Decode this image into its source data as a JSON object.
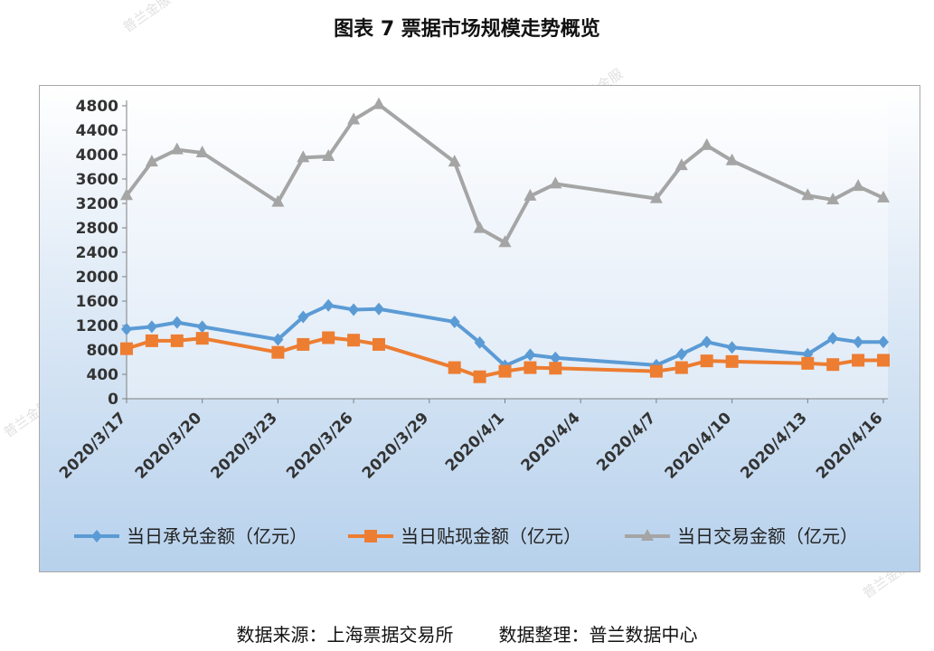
{
  "title": "图表 7  票据市场规模走势概览",
  "source": {
    "left": "数据来源：上海票据交易所",
    "right": "数据整理：普兰数据中心"
  },
  "watermark": "普兰金服",
  "chart_data": {
    "type": "line",
    "ylim": [
      0,
      4800
    ],
    "ytick_step": 400,
    "x_tick_labels": [
      "2020/3/17",
      "2020/3/20",
      "2020/3/23",
      "2020/3/26",
      "2020/3/29",
      "2020/4/1",
      "2020/4/4",
      "2020/4/7",
      "2020/4/10",
      "2020/4/13",
      "2020/4/16"
    ],
    "x": [
      "2020/3/17",
      "2020/3/18",
      "2020/3/19",
      "2020/3/20",
      "2020/3/23",
      "2020/3/24",
      "2020/3/25",
      "2020/3/26",
      "2020/3/27",
      "2020/3/30",
      "2020/3/31",
      "2020/4/1",
      "2020/4/2",
      "2020/4/3",
      "2020/4/7",
      "2020/4/8",
      "2020/4/9",
      "2020/4/10",
      "2020/4/13",
      "2020/4/14",
      "2020/4/15",
      "2020/4/16"
    ],
    "legend_position": "bottom",
    "grid": false,
    "series": [
      {
        "name": "当日承兑金额（亿元）",
        "color": "#5b9bd5",
        "marker": "diamond",
        "values": [
          1140,
          1180,
          1250,
          1180,
          970,
          1340,
          1530,
          1460,
          1470,
          1260,
          920,
          540,
          720,
          670,
          550,
          730,
          930,
          840,
          730,
          990,
          930,
          930
        ]
      },
      {
        "name": "当日贴现金额（亿元）",
        "color": "#ed7d31",
        "marker": "square",
        "values": [
          820,
          950,
          950,
          990,
          760,
          890,
          1000,
          960,
          890,
          510,
          360,
          450,
          510,
          500,
          450,
          510,
          620,
          610,
          580,
          560,
          630,
          630
        ]
      },
      {
        "name": "当日交易金额（亿元）",
        "color": "#a5a5a5",
        "marker": "triangle",
        "values": [
          3330,
          3880,
          4080,
          4030,
          3220,
          3950,
          3970,
          4570,
          4820,
          3880,
          2790,
          2560,
          3320,
          3520,
          3280,
          3820,
          4150,
          3900,
          3330,
          3260,
          3480,
          3290
        ]
      }
    ]
  }
}
